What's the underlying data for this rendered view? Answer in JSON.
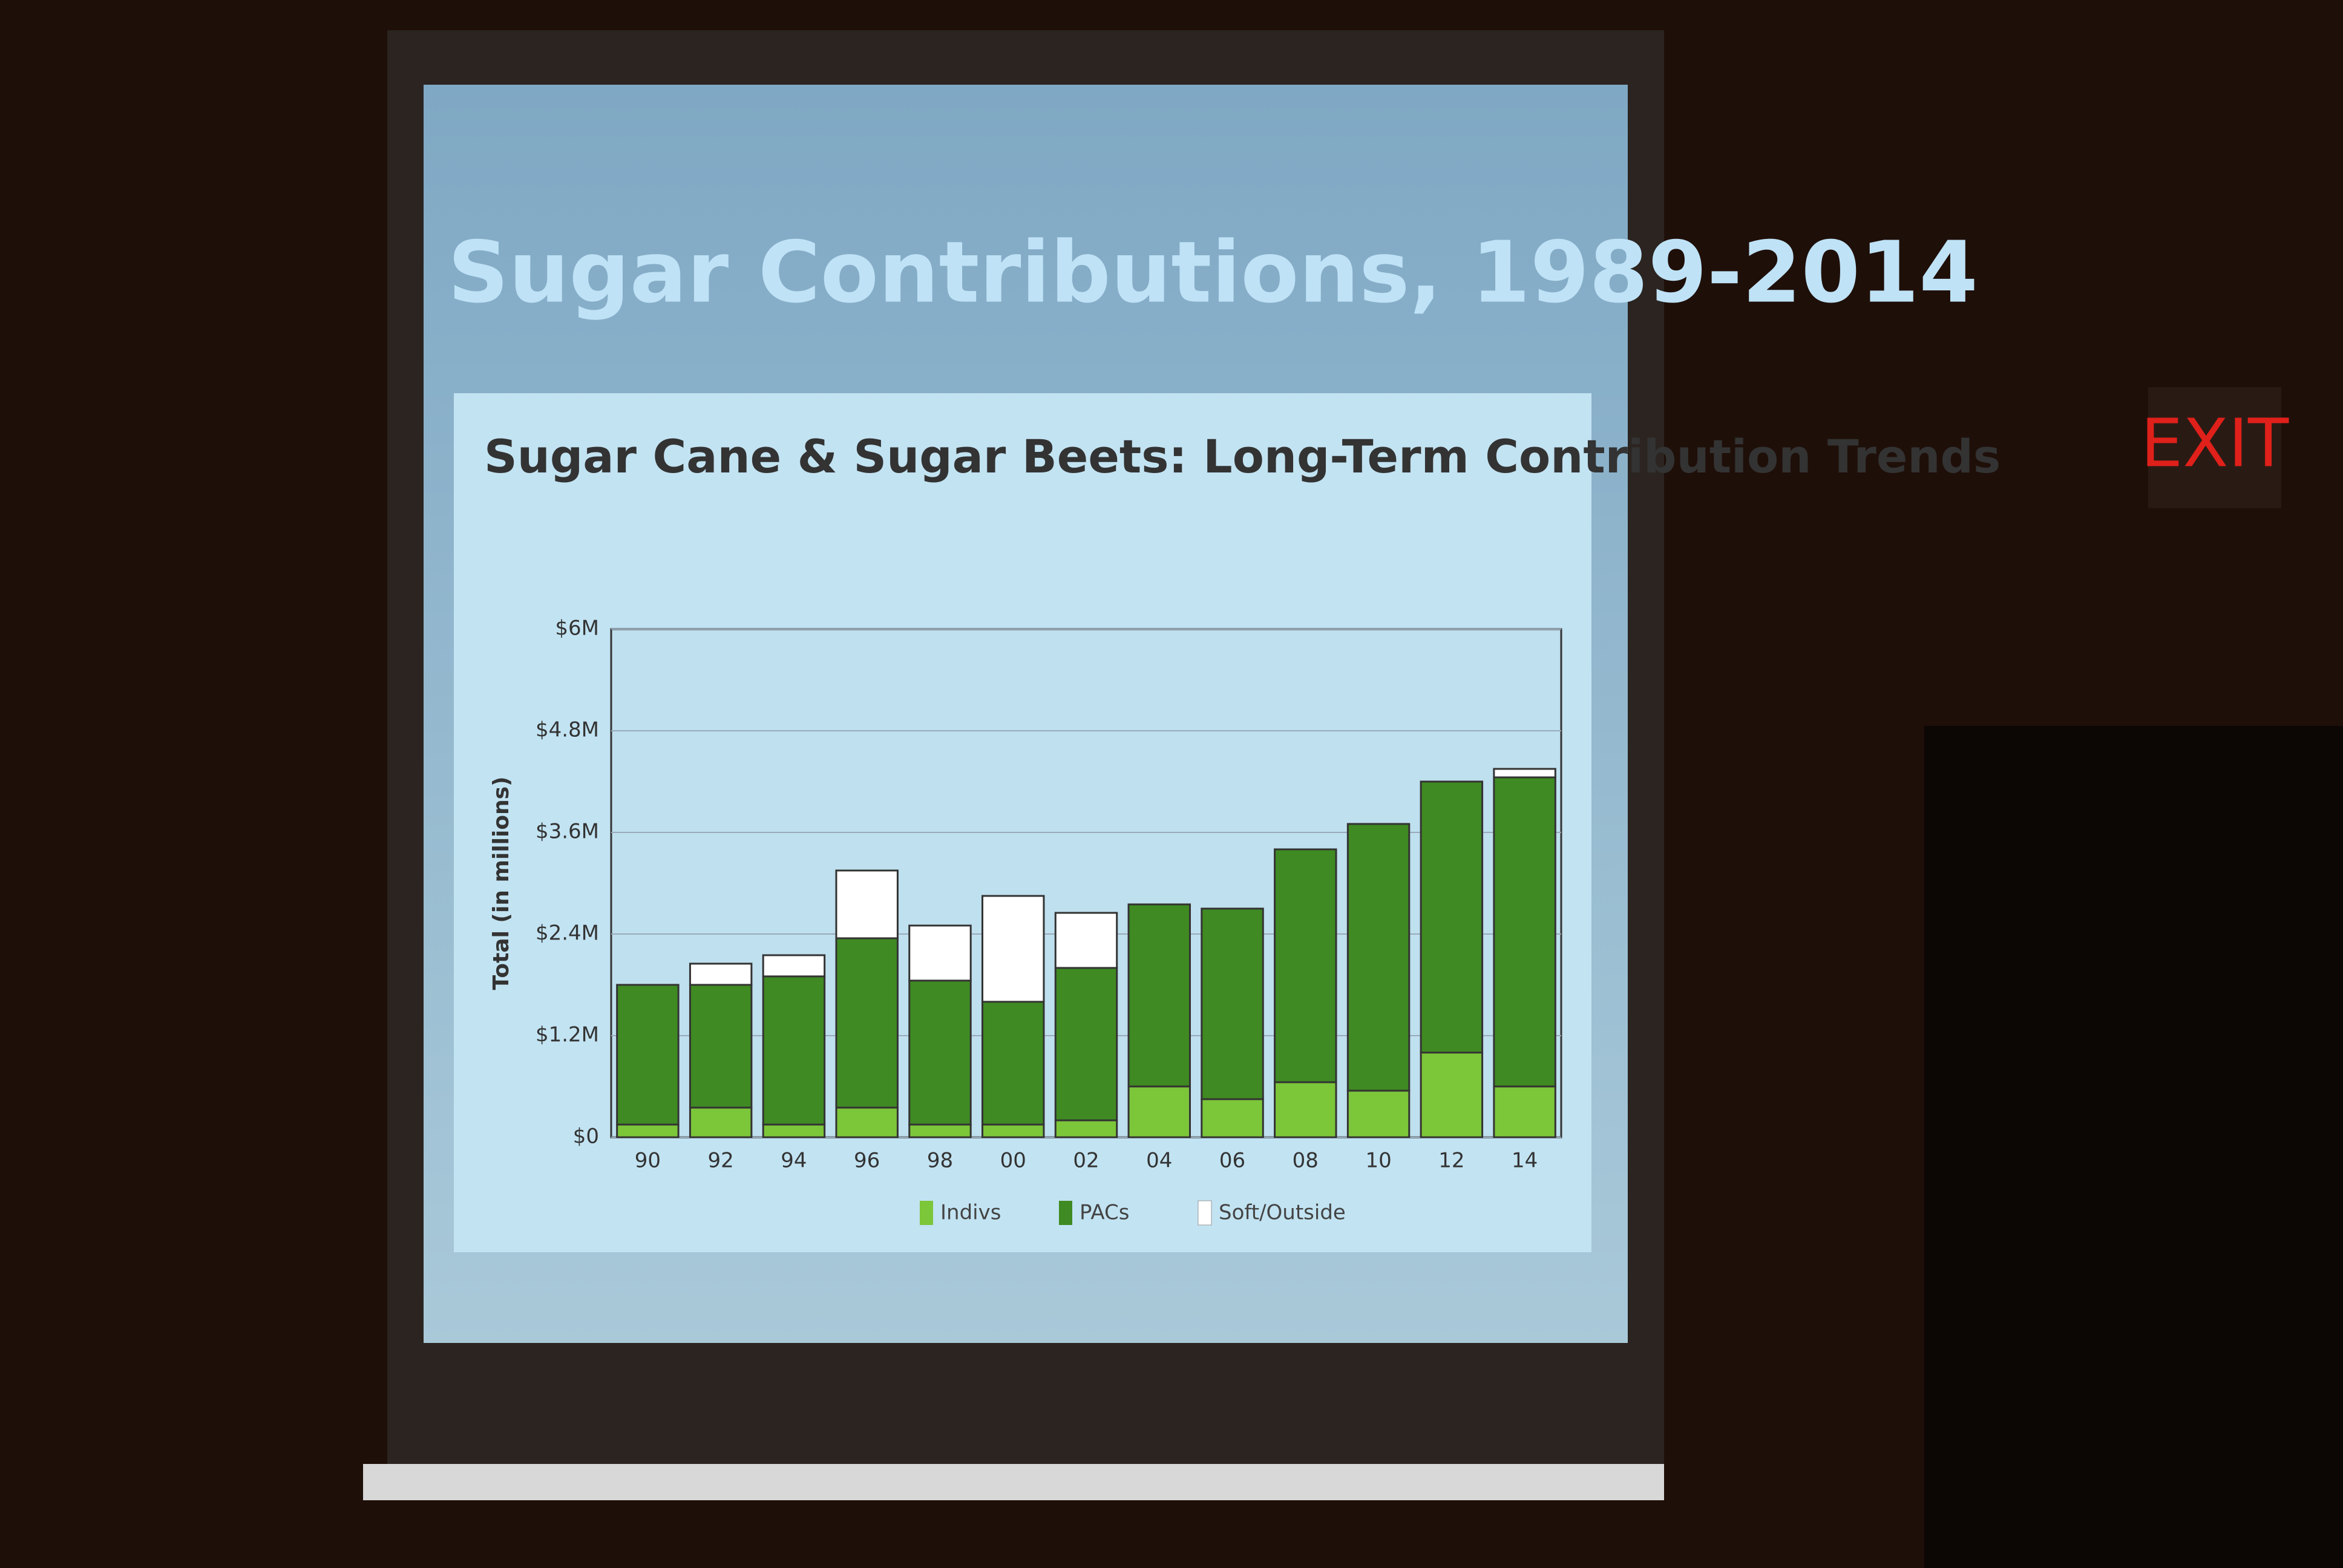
{
  "chart_data": {
    "type": "stacked-bar",
    "title": "Sugar Contributions, 1989-2014",
    "subtitle": "Sugar Cane & Sugar Beets: Long-Term Contribution Trends",
    "y_label": "Total (in millions)",
    "categories": [
      "90",
      "92",
      "94",
      "96",
      "98",
      "00",
      "02",
      "04",
      "06",
      "08",
      "10",
      "12",
      "14"
    ],
    "series": [
      {
        "name": "Indivs",
        "color": "#7cc63a",
        "values": [
          150000,
          350000,
          150000,
          350000,
          150000,
          150000,
          200000,
          600000,
          450000,
          650000,
          550000,
          1000000,
          600000
        ]
      },
      {
        "name": "PACs",
        "color": "#3f8a22",
        "values": [
          1650000,
          1450000,
          1750000,
          2000000,
          1700000,
          1450000,
          1800000,
          2150000,
          2250000,
          2750000,
          3150000,
          3200000,
          3650000
        ]
      },
      {
        "name": "Soft/Outside",
        "color": "#ffffff",
        "values": [
          0,
          250000,
          250000,
          800000,
          650000,
          1250000,
          650000,
          0,
          0,
          0,
          0,
          0,
          100000
        ]
      }
    ],
    "ylim": [
      0,
      6000000
    ],
    "yticks": [
      {
        "value": 0,
        "label": "$0"
      },
      {
        "value": 1200000,
        "label": "$1.2M"
      },
      {
        "value": 2400000,
        "label": "$2.4M"
      },
      {
        "value": 3600000,
        "label": "$3.6M"
      },
      {
        "value": 4800000,
        "label": "$4.8M"
      },
      {
        "value": 6000000,
        "label": "$6M"
      }
    ],
    "grid": true
  },
  "scene": {
    "exit_sign": "EXIT"
  }
}
